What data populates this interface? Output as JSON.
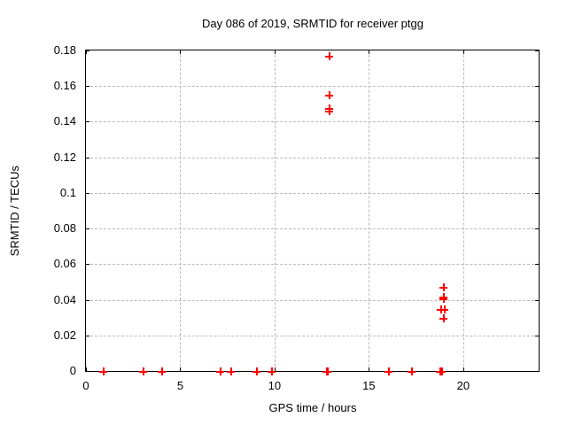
{
  "chart_data": {
    "type": "scatter",
    "title": "Day 086 of 2019, SRMTID for receiver ptgg",
    "xlabel": "GPS time / hours",
    "ylabel": "SRMTID / TECUs",
    "xlim": [
      0,
      24
    ],
    "ylim": [
      0,
      0.18
    ],
    "x_tick_values": [
      0,
      5,
      10,
      15,
      20
    ],
    "x_tick_labels": [
      "0",
      "5",
      "10",
      "15",
      "20"
    ],
    "y_tick_values": [
      0,
      0.02,
      0.04,
      0.06,
      0.08,
      0.1,
      0.12,
      0.14,
      0.16,
      0.18
    ],
    "y_tick_labels": [
      "0",
      "0.02",
      "0.04",
      "0.06",
      "0.08",
      "0.1",
      "0.12",
      "0.14",
      "0.16",
      "0.18"
    ],
    "grid": true,
    "legend": false,
    "marker": "plus",
    "marker_color": "#ff0000",
    "grid_color": "#b9b9b9",
    "axis_color": "#000000",
    "background_color": "#ffffff",
    "series": [
      {
        "name": "SRMTID",
        "points": [
          [
            0.91,
            0
          ],
          [
            3.05,
            0
          ],
          [
            4.03,
            0
          ],
          [
            7.11,
            0
          ],
          [
            7.66,
            0
          ],
          [
            9.04,
            0
          ],
          [
            9.85,
            0
          ],
          [
            12.76,
            0
          ],
          [
            12.79,
            0
          ],
          [
            12.82,
            0
          ],
          [
            12.88,
            0.177
          ],
          [
            12.88,
            0.155
          ],
          [
            12.88,
            0.1475
          ],
          [
            12.88,
            0.146
          ],
          [
            16.03,
            0
          ],
          [
            17.24,
            0
          ],
          [
            18.78,
            0
          ],
          [
            18.81,
            0
          ],
          [
            18.84,
            0
          ],
          [
            18.93,
            0.047
          ],
          [
            18.93,
            0.0415
          ],
          [
            18.93,
            0.0405
          ],
          [
            18.81,
            0.0345
          ],
          [
            19.0,
            0.0345
          ],
          [
            18.97,
            0.0295
          ]
        ]
      }
    ]
  }
}
